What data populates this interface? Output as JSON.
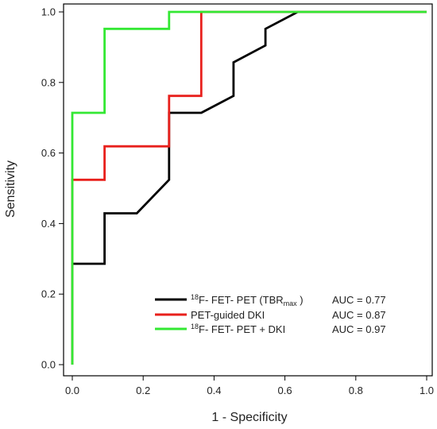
{
  "chart_data": {
    "type": "line",
    "xlabel": "1 - Specificity",
    "ylabel": "Sensitivity",
    "xlim": [
      0.0,
      1.0
    ],
    "ylim": [
      0.0,
      1.0
    ],
    "xticks": [
      "0.0",
      "0.2",
      "0.4",
      "0.6",
      "0.8",
      "1.0"
    ],
    "yticks": [
      "0.0",
      "0.2",
      "0.4",
      "0.6",
      "0.8",
      "1.0"
    ],
    "grid": false,
    "legend_position": "bottom-right",
    "series": [
      {
        "name": "FET- PET (TBRmax )",
        "name_sup": "18",
        "name_prefix": "F- ",
        "name_sub": "max",
        "auc": "AUC = 0.77",
        "color": "#000000",
        "points": [
          [
            0.0,
            0.0
          ],
          [
            0.0,
            0.286
          ],
          [
            0.091,
            0.286
          ],
          [
            0.091,
            0.429
          ],
          [
            0.182,
            0.429
          ],
          [
            0.273,
            0.524
          ],
          [
            0.273,
            0.714
          ],
          [
            0.364,
            0.714
          ],
          [
            0.455,
            0.762
          ],
          [
            0.455,
            0.857
          ],
          [
            0.545,
            0.905
          ],
          [
            0.545,
            0.952
          ],
          [
            0.636,
            1.0
          ],
          [
            1.0,
            1.0
          ]
        ]
      },
      {
        "name": "PET-guided DKI",
        "auc": "AUC = 0.87",
        "color": "#e8201c",
        "points": [
          [
            0.0,
            0.0
          ],
          [
            0.0,
            0.524
          ],
          [
            0.091,
            0.524
          ],
          [
            0.091,
            0.619
          ],
          [
            0.273,
            0.619
          ],
          [
            0.273,
            0.762
          ],
          [
            0.364,
            0.762
          ],
          [
            0.364,
            1.0
          ],
          [
            1.0,
            1.0
          ]
        ]
      },
      {
        "name": "FET- PET + DKI",
        "name_sup": "18",
        "name_prefix": "F- ",
        "auc": "AUC = 0.97",
        "color": "#33e833",
        "points": [
          [
            0.0,
            0.0
          ],
          [
            0.0,
            0.714
          ],
          [
            0.091,
            0.714
          ],
          [
            0.091,
            0.952
          ],
          [
            0.273,
            0.952
          ],
          [
            0.273,
            1.0
          ],
          [
            1.0,
            1.0
          ]
        ]
      }
    ]
  }
}
